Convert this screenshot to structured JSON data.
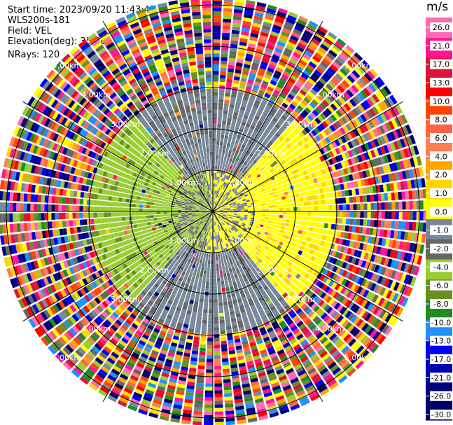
{
  "info": {
    "start_time": "Start time: 2023/09/20 11:43:47",
    "station": "WLS200s-181",
    "field": "Field: VEL",
    "elevation": "Elevation(deg): 35.30",
    "nrays": "NRays: 120"
  },
  "chart_data": {
    "type": "heatmap",
    "subtype": "polar-ppi",
    "field": "VEL",
    "units": "m/s",
    "elevation_deg": 35.3,
    "n_rays": 120,
    "range_rings_km": [
      1.0,
      2.0,
      3.0,
      4.0,
      5.0
    ],
    "ring_labels": [
      "1.00km",
      "2.00km",
      "3.00km",
      "4.00km",
      "5.00km"
    ],
    "spoke_angles_deg": [
      0,
      30,
      60,
      90,
      120,
      150,
      180,
      210,
      240,
      270,
      300,
      330
    ],
    "colorbar": {
      "unit_label": "m/s",
      "colors": [
        "#000066",
        "#00007a",
        "#0000b3",
        "#0000ff",
        "#1e90ff",
        "#228b22",
        "#6b8e23",
        "#9acd32",
        "#666666",
        "#778899",
        "#ffff00",
        "#ffd700",
        "#ffa500",
        "#ff7f50",
        "#ff6347",
        "#ff4500",
        "#ff0000",
        "#dc143c",
        "#ff1493",
        "#ff69b4"
      ],
      "ticks": [
        "-30.0",
        "-26.0",
        "-21.0",
        "-17.0",
        "-13.0",
        "-10.0",
        "-8.0",
        "-6.0",
        "-4.0",
        "-2.0",
        "-1.0",
        "0.0",
        "1.0",
        "2.0",
        "4.0",
        "6.0",
        "8.0",
        "10.0",
        "13.0",
        "17.0",
        "21.0",
        "26.0"
      ]
    },
    "zones": [
      {
        "range_km": [
          0.0,
          1.0
        ],
        "description": "mixed yellow/green/gray near center"
      },
      {
        "range_km": [
          1.0,
          2.9
        ],
        "description": "green (-2 m/s) west half, yellow (+2 m/s) east half, gray (~0) north/south"
      },
      {
        "range_km": [
          2.9,
          5.3
        ],
        "description": "noise: random velocities"
      }
    ]
  }
}
